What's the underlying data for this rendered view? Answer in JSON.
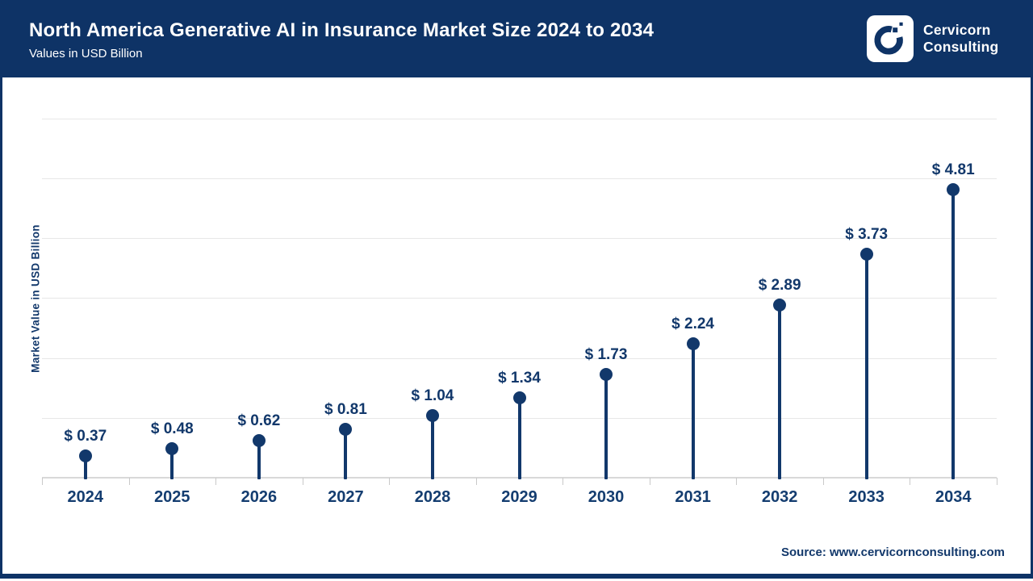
{
  "header": {
    "title": "North America Generative AI in Insurance Market Size 2024 to 2034",
    "subtitle": "Values in USD Billion",
    "logo": {
      "line1": "Cervicorn",
      "line2": "Consulting"
    }
  },
  "chart_data": {
    "type": "lollipop",
    "title": "North America Generative AI in Insurance Market Size 2024 to 2034",
    "subtitle": "Values in USD Billion",
    "categories": [
      "2024",
      "2025",
      "2026",
      "2027",
      "2028",
      "2029",
      "2030",
      "2031",
      "2032",
      "2033",
      "2034"
    ],
    "values": [
      0.37,
      0.48,
      0.62,
      0.81,
      1.04,
      1.34,
      1.73,
      2.24,
      2.89,
      3.73,
      4.81
    ],
    "value_prefix": "$ ",
    "xlabel": "",
    "ylabel": "Market Value in USD Billion",
    "ylim": [
      0,
      6
    ],
    "grid": "horizontal gridlines on, no y tick labels",
    "legend": "none"
  },
  "footer": {
    "source": "Source: www.cervicornconsulting.com"
  },
  "colors": {
    "header_bg": "#0e3366",
    "accent_navy": "#12386b",
    "year_label": "#143d70",
    "gridline": "#e7e7e7",
    "axis_line": "#d9d9d9",
    "tick": "#c9c9c9",
    "background": "#ffffff"
  }
}
